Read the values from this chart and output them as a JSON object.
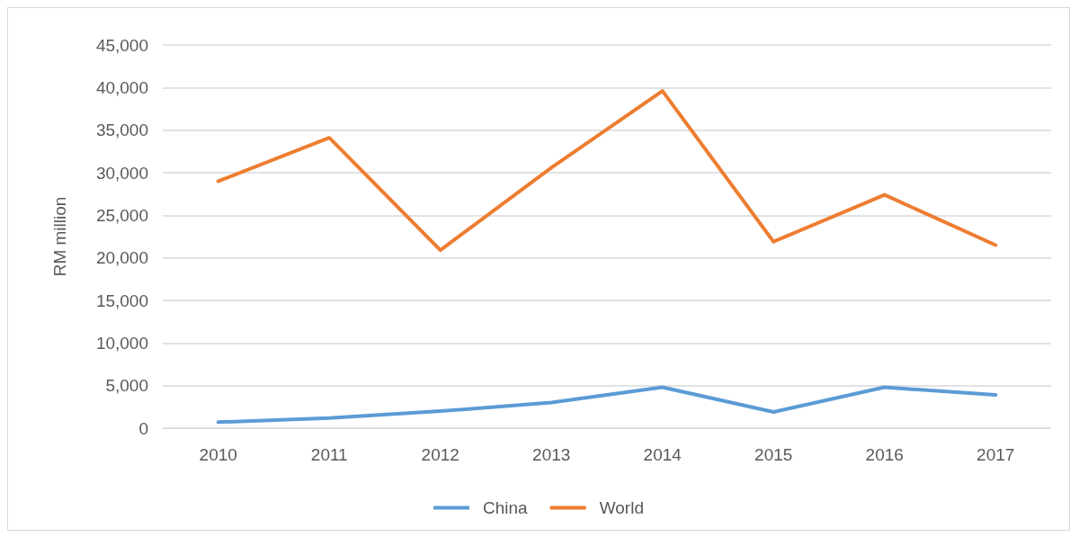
{
  "chart_data": {
    "type": "line",
    "ylabel": "RM million",
    "categories": [
      "2010",
      "2011",
      "2012",
      "2013",
      "2014",
      "2015",
      "2016",
      "2017"
    ],
    "series": [
      {
        "name": "China",
        "color": "#5b9bd5",
        "values": [
          700,
          1200,
          2000,
          3000,
          4800,
          1900,
          4800,
          3900
        ]
      },
      {
        "name": "World",
        "color": "#ed7d31",
        "values": [
          29000,
          34100,
          20900,
          30600,
          39600,
          21900,
          27400,
          21500
        ]
      }
    ],
    "ylim": [
      0,
      45000
    ],
    "yticks": [
      {
        "value": 0,
        "label": "0"
      },
      {
        "value": 5000,
        "label": "5,000"
      },
      {
        "value": 10000,
        "label": "10,000"
      },
      {
        "value": 15000,
        "label": "15,000"
      },
      {
        "value": 20000,
        "label": "20,000"
      },
      {
        "value": 25000,
        "label": "25,000"
      },
      {
        "value": 30000,
        "label": "30,000"
      },
      {
        "value": 35000,
        "label": "35,000"
      },
      {
        "value": 40000,
        "label": "40,000"
      },
      {
        "value": 45000,
        "label": "45,000"
      }
    ],
    "grid": "y",
    "legend": "bottom",
    "marker": "none",
    "line_style": "solid"
  }
}
